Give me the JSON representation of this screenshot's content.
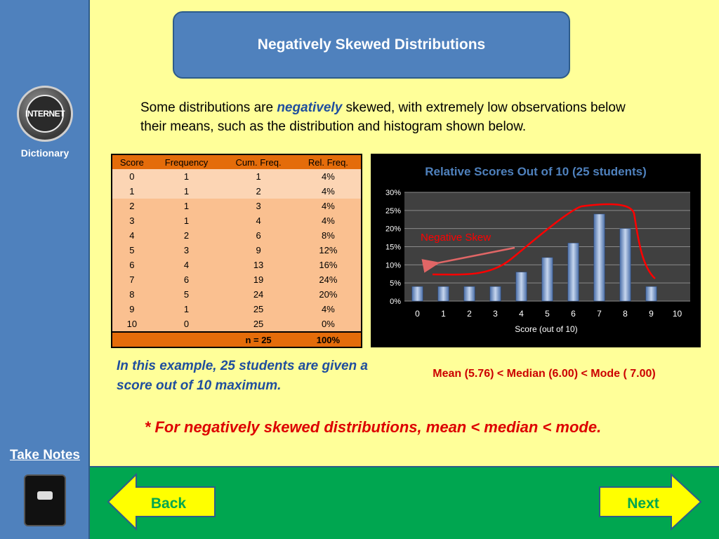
{
  "sidebar": {
    "dictionary_label": "Dictionary",
    "logo_text": "INTERNET",
    "take_notes_label": "Take Notes",
    "logo_icon": "internet-globe-icon",
    "notebook_icon": "notebook-icon"
  },
  "title": "Negatively Skewed Distributions",
  "intro": {
    "before": "Some distributions are ",
    "emphasis": "negatively",
    "after": " skewed, with extremely low observations below their means, such as the distribution and histogram shown below."
  },
  "table": {
    "headers": [
      "Score",
      "Frequency",
      "Cum. Freq.",
      "Rel. Freq."
    ],
    "rows": [
      [
        "0",
        "1",
        "1",
        "4%"
      ],
      [
        "1",
        "1",
        "2",
        "4%"
      ],
      [
        "2",
        "1",
        "3",
        "4%"
      ],
      [
        "3",
        "1",
        "4",
        "4%"
      ],
      [
        "4",
        "2",
        "6",
        "8%"
      ],
      [
        "5",
        "3",
        "9",
        "12%"
      ],
      [
        "6",
        "4",
        "13",
        "16%"
      ],
      [
        "7",
        "6",
        "19",
        "24%"
      ],
      [
        "8",
        "5",
        "24",
        "20%"
      ],
      [
        "9",
        "1",
        "25",
        "4%"
      ],
      [
        "10",
        "0",
        "25",
        "0%"
      ]
    ],
    "footer": [
      "",
      "",
      "n = 25",
      "100%"
    ]
  },
  "chart_data": {
    "type": "bar",
    "title": "Relative Scores Out of 10 (25 students)",
    "xlabel": "Score (out of 10)",
    "ylabel": "",
    "categories": [
      "0",
      "1",
      "2",
      "3",
      "4",
      "5",
      "6",
      "7",
      "8",
      "9",
      "10"
    ],
    "values": [
      4,
      4,
      4,
      4,
      8,
      12,
      16,
      24,
      20,
      4,
      0
    ],
    "ylim": [
      0,
      30
    ],
    "yticks": [
      "0%",
      "5%",
      "10%",
      "15%",
      "20%",
      "25%",
      "30%"
    ],
    "grid": true,
    "annotation": "Negative Skew",
    "colors": {
      "bar": "#6E8FC9",
      "curve": "#FF0000",
      "title": "#4F81BD",
      "background": "#404040"
    }
  },
  "example_text": "In this example, 25 students are given a score out of 10 maximum.",
  "mean_median_mode": "Mean (5.76) < Median (6.00) < Mode ( 7.00)",
  "conclusion": "* For negatively skewed distributions, mean < median < mode.",
  "nav": {
    "back_label": "Back",
    "next_label": "Next"
  },
  "colors": {
    "sidebar": "#4F81BD",
    "background": "#FFFF99",
    "bottom_bar": "#00A650",
    "table_header": "#E46C0A",
    "nav_button": "#FFFF00"
  }
}
